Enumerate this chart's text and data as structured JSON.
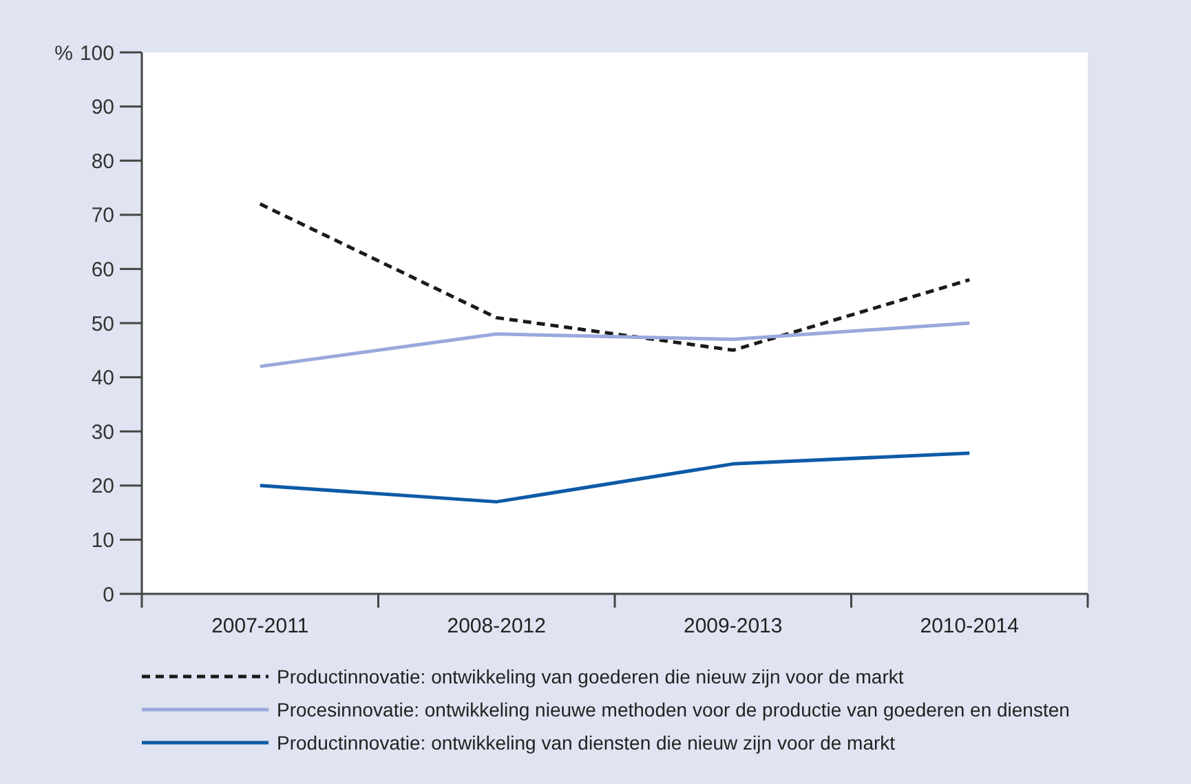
{
  "chart_data": {
    "type": "line",
    "ylabel": "%",
    "categories": [
      "2007-2011",
      "2008-2012",
      "2009-2013",
      "2010-2014"
    ],
    "ylim": [
      0,
      100
    ],
    "yticks": [
      0,
      10,
      20,
      30,
      40,
      50,
      60,
      70,
      80,
      90,
      100
    ],
    "legend": "bottom",
    "grid": false,
    "series": [
      {
        "name": "Productinnovatie: ontwikkeling van goederen die nieuw zijn voor de markt",
        "color": "#1a1a1a",
        "line_style": "dashed",
        "values": [
          72,
          51,
          45,
          58
        ]
      },
      {
        "name": "Procesinnovatie: ontwikkeling nieuwe methoden voor de productie van goederen en diensten",
        "color": "#9aa8dc",
        "line_style": "solid",
        "values": [
          42,
          48,
          47,
          50
        ]
      },
      {
        "name": "Productinnovatie: ontwikkeling van diensten die nieuw zijn voor de markt",
        "color": "#0d5aa7",
        "line_style": "solid",
        "values": [
          20,
          17,
          24,
          26
        ]
      }
    ]
  }
}
